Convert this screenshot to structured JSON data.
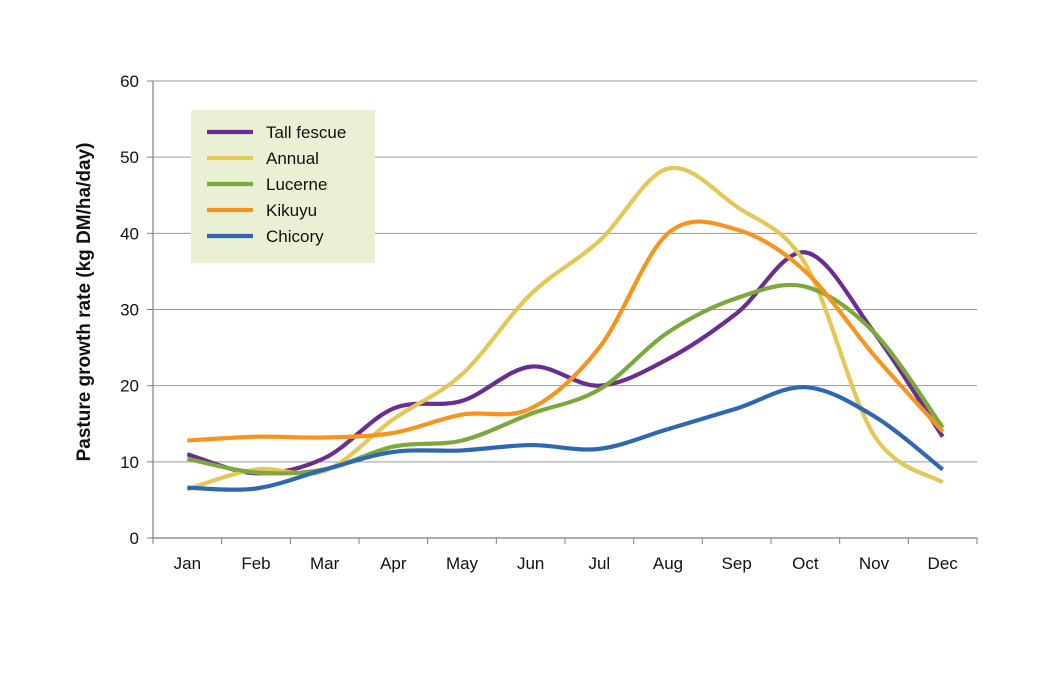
{
  "chart_data": {
    "type": "line",
    "title": "",
    "xlabel": "",
    "ylabel": "Pasture growth rate (kg DM/ha/day)",
    "categories": [
      "Jan",
      "Feb",
      "Mar",
      "Apr",
      "May",
      "Jun",
      "Jul",
      "Aug",
      "Sep",
      "Oct",
      "Nov",
      "Dec"
    ],
    "ylim": [
      0,
      60
    ],
    "yticks": [
      "0",
      "10",
      "20",
      "30",
      "40",
      "50",
      "60"
    ],
    "grid": true,
    "legend": "top-left",
    "legend_background": "#e9f0d4",
    "series": [
      {
        "name": "Tall fescue",
        "color": "#6a2d91",
        "values": [
          11,
          8.5,
          10.5,
          17,
          18,
          22.5,
          20,
          23.5,
          29.5,
          37.5,
          27,
          13.3
        ]
      },
      {
        "name": "Annual",
        "color": "#e3c856",
        "values": [
          6.4,
          9,
          8.8,
          15.6,
          21.5,
          32,
          39,
          48.5,
          43.5,
          36,
          13.5,
          7.3
        ]
      },
      {
        "name": "Lucerne",
        "color": "#7ca83c",
        "values": [
          10.4,
          8.6,
          9,
          12,
          12.8,
          16.3,
          19.5,
          27,
          31.5,
          33,
          27,
          14.5
        ]
      },
      {
        "name": "Kikuyu",
        "color": "#f7941d",
        "values": [
          12.8,
          13.3,
          13.2,
          13.8,
          16.2,
          17,
          25,
          40,
          40.5,
          35,
          24,
          14
        ]
      },
      {
        "name": "Chicory",
        "color": "#2e67b2",
        "values": [
          6.6,
          6.5,
          9,
          11.3,
          11.5,
          12.2,
          11.7,
          14.3,
          17,
          19.8,
          16,
          9
        ]
      }
    ]
  }
}
